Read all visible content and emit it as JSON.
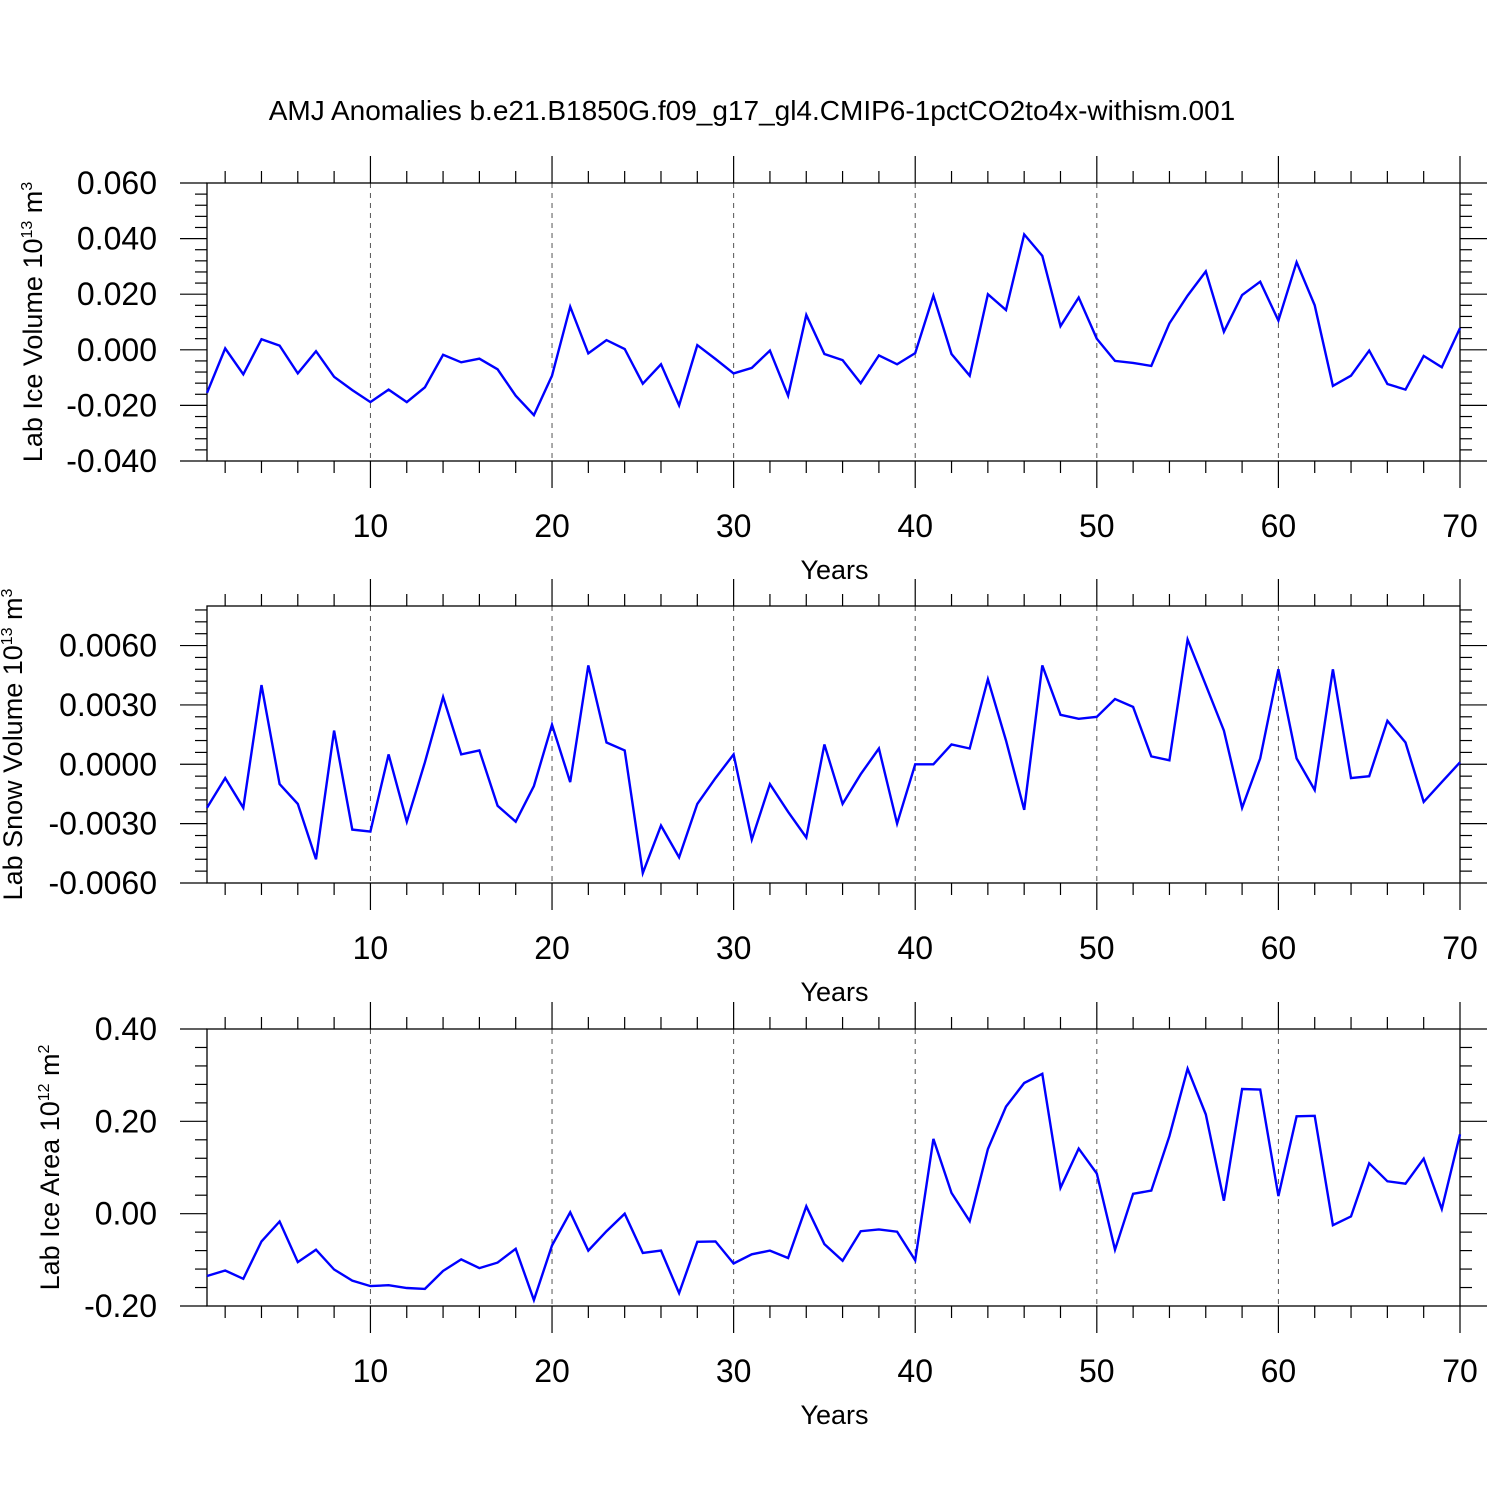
{
  "figure": {
    "title": "AMJ Anomalies b.e21.B1850G.f09_g17_gl4.CMIP6-1pctCO2to4x-withism.001"
  },
  "colors": {
    "line": "#0000ff",
    "axes": "#000000",
    "grid": "#555555"
  },
  "chart_data": [
    {
      "type": "line",
      "ylabel": {
        "text": "Lab Ice Volume 10",
        "exp": "13",
        "unit": " m",
        "unit_exp": "3"
      },
      "xlabel": "Years",
      "xlim": [
        1,
        70
      ],
      "ylim": [
        -0.04,
        0.06
      ],
      "yticks": [
        -0.04,
        -0.02,
        0.0,
        0.02,
        0.04,
        0.06
      ],
      "ytick_labels": [
        "-0.040",
        "-0.020",
        "0.000",
        "0.020",
        "0.040",
        "0.060"
      ],
      "xticks": [
        10,
        20,
        30,
        40,
        50,
        60,
        70
      ],
      "xtick_labels": [
        "10",
        "20",
        "30",
        "40",
        "50",
        "60",
        "70"
      ],
      "grid_x": true,
      "series": [
        {
          "name": "Lab Ice Volume",
          "color": "#0000ff",
          "values": [
            -0.0155,
            0.0005,
            -0.0088,
            0.0038,
            0.0015,
            -0.0085,
            -0.0005,
            -0.0097,
            -0.0145,
            -0.0188,
            -0.0143,
            -0.0188,
            -0.0135,
            -0.0018,
            -0.0045,
            -0.0032,
            -0.007,
            -0.0165,
            -0.0235,
            -0.0093,
            0.0155,
            -0.0013,
            0.0035,
            0.0003,
            -0.0122,
            -0.0052,
            -0.02,
            0.0017,
            -0.0033,
            -0.0085,
            -0.0065,
            -0.0003,
            -0.0165,
            0.0125,
            -0.0015,
            -0.0037,
            -0.012,
            -0.002,
            -0.0052,
            -0.0012,
            0.0195,
            -0.0015,
            -0.0093,
            0.02,
            0.0143,
            0.0415,
            0.0338,
            0.0085,
            0.0188,
            0.004,
            -0.004,
            -0.0047,
            -0.0058,
            0.0095,
            0.0195,
            0.0282,
            0.0065,
            0.0197,
            0.0245,
            0.0105,
            0.0315,
            0.016,
            -0.013,
            -0.0093,
            -0.0003,
            -0.0123,
            -0.0143,
            -0.0022,
            -0.0063,
            0.0078
          ]
        }
      ]
    },
    {
      "type": "line",
      "ylabel": {
        "text": "Lab Snow Volume 10",
        "exp": "13",
        "unit": " m",
        "unit_exp": "3"
      },
      "xlabel": "Years",
      "xlim": [
        1,
        70
      ],
      "ylim": [
        -0.006,
        0.008
      ],
      "yticks": [
        -0.006,
        -0.003,
        0.0,
        0.003,
        0.006
      ],
      "ytick_labels": [
        "-0.0060",
        "-0.0030",
        "0.0000",
        "0.0030",
        "0.0060"
      ],
      "xticks": [
        10,
        20,
        30,
        40,
        50,
        60,
        70
      ],
      "xtick_labels": [
        "10",
        "20",
        "30",
        "40",
        "50",
        "60",
        "70"
      ],
      "grid_x": true,
      "series": [
        {
          "name": "Lab Snow Volume",
          "color": "#0000ff",
          "values": [
            -0.0022,
            -0.0007,
            -0.0022,
            0.004,
            -0.001,
            -0.002,
            -0.0048,
            0.0017,
            -0.0033,
            -0.0034,
            0.0005,
            -0.0029,
            0.0001,
            0.0034,
            0.0005,
            0.0007,
            -0.0021,
            -0.0029,
            -0.0011,
            0.002,
            -0.0009,
            0.005,
            0.0011,
            0.0007,
            -0.0055,
            -0.0031,
            -0.0047,
            -0.002,
            -0.0007,
            0.0005,
            -0.0038,
            -0.001,
            -0.0024,
            -0.0037,
            0.001,
            -0.002,
            -0.0005,
            0.0008,
            -0.003,
            0.0,
            0.0,
            0.001,
            0.0008,
            0.0043,
            0.0012,
            -0.0023,
            0.005,
            0.0025,
            0.0023,
            0.0024,
            0.0033,
            0.0029,
            0.0004,
            0.0002,
            0.0063,
            0.004,
            0.0017,
            -0.0022,
            0.0003,
            0.0048,
            0.0003,
            -0.0013,
            0.0048,
            -0.0007,
            -0.0006,
            0.0022,
            0.0011,
            -0.0019,
            -0.0009,
            0.0001
          ]
        }
      ]
    },
    {
      "type": "line",
      "ylabel": {
        "text": "Lab Ice Area 10",
        "exp": "12",
        "unit": " m",
        "unit_exp": "2"
      },
      "xlabel": "Years",
      "xlim": [
        1,
        70
      ],
      "ylim": [
        -0.2,
        0.4
      ],
      "yticks": [
        -0.2,
        0.0,
        0.2,
        0.4
      ],
      "ytick_labels": [
        "-0.20",
        "0.00",
        "0.20",
        "0.40"
      ],
      "xticks": [
        10,
        20,
        30,
        40,
        50,
        60,
        70
      ],
      "xtick_labels": [
        "10",
        "20",
        "30",
        "40",
        "50",
        "60",
        "70"
      ],
      "grid_x": true,
      "series": [
        {
          "name": "Lab Ice Area",
          "color": "#0000ff",
          "values": [
            -0.135,
            -0.123,
            -0.141,
            -0.06,
            -0.017,
            -0.105,
            -0.078,
            -0.121,
            -0.145,
            -0.157,
            -0.155,
            -0.161,
            -0.163,
            -0.124,
            -0.099,
            -0.118,
            -0.106,
            -0.076,
            -0.187,
            -0.069,
            0.003,
            -0.08,
            -0.038,
            0.0,
            -0.085,
            -0.08,
            -0.172,
            -0.061,
            -0.06,
            -0.108,
            -0.088,
            -0.08,
            -0.096,
            0.016,
            -0.066,
            -0.102,
            -0.038,
            -0.034,
            -0.039,
            -0.101,
            0.162,
            0.045,
            -0.016,
            0.14,
            0.232,
            0.283,
            0.303,
            0.056,
            0.141,
            0.087,
            -0.078,
            0.043,
            0.05,
            0.168,
            0.314,
            0.215,
            0.028,
            0.27,
            0.269,
            0.038,
            0.211,
            0.212,
            -0.025,
            -0.006,
            0.109,
            0.07,
            0.065,
            0.119,
            0.01,
            0.172
          ]
        }
      ]
    }
  ]
}
